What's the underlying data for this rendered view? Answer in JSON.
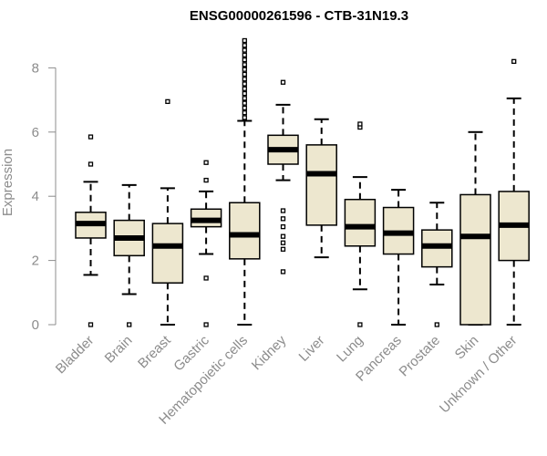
{
  "chart_data": {
    "type": "boxplot",
    "title": "ENSG00000261596 - CTB-31N19.3",
    "xlabel": "",
    "ylabel": "Expression",
    "ylim": [
      0,
      9
    ],
    "yticks": [
      0,
      2,
      4,
      6,
      8
    ],
    "colors": {
      "box_fill": "#ede7cf",
      "stroke": "#000000",
      "axis": "#8c8c8c"
    },
    "categories": [
      "Bladder",
      "Brain",
      "Breast",
      "Gastric",
      "Hematopoietic cells",
      "Kidney",
      "Liver",
      "Lung",
      "Pancreas",
      "Prostate",
      "Skin",
      "Unknown / Other"
    ],
    "boxes": [
      {
        "name": "Bladder",
        "whisker_low": 1.55,
        "q1": 2.7,
        "median": 3.15,
        "q3": 3.5,
        "whisker_high": 4.45,
        "outliers": [
          0,
          5,
          5.85
        ]
      },
      {
        "name": "Brain",
        "whisker_low": 0.95,
        "q1": 2.15,
        "median": 2.7,
        "q3": 3.25,
        "whisker_high": 4.35,
        "outliers": [
          0
        ]
      },
      {
        "name": "Breast",
        "whisker_low": 0,
        "q1": 1.3,
        "median": 2.45,
        "q3": 3.15,
        "whisker_high": 4.25,
        "outliers": [
          6.95
        ]
      },
      {
        "name": "Gastric",
        "whisker_low": 2.2,
        "q1": 3.05,
        "median": 3.25,
        "q3": 3.6,
        "whisker_high": 4.15,
        "outliers": [
          0,
          1.45,
          4.5,
          5.05
        ]
      },
      {
        "name": "Hematopoietic cells",
        "whisker_low": 0,
        "q1": 2.05,
        "median": 2.8,
        "q3": 3.8,
        "whisker_high": 6.35,
        "outliers": [
          6.45,
          6.6,
          6.75,
          6.9,
          7.05,
          7.2,
          7.35,
          7.5,
          7.65,
          7.8,
          7.95,
          8.1,
          8.25,
          8.4,
          8.55,
          8.7,
          8.85
        ]
      },
      {
        "name": "Kidney",
        "whisker_low": 4.5,
        "q1": 5.0,
        "median": 5.45,
        "q3": 5.9,
        "whisker_high": 6.85,
        "outliers": [
          1.65,
          2.35,
          2.55,
          2.75,
          3.05,
          3.3,
          3.55,
          7.55
        ]
      },
      {
        "name": "Liver",
        "whisker_low": 2.1,
        "q1": 3.1,
        "median": 4.7,
        "q3": 5.6,
        "whisker_high": 6.4,
        "outliers": []
      },
      {
        "name": "Lung",
        "whisker_low": 1.1,
        "q1": 2.45,
        "median": 3.05,
        "q3": 3.9,
        "whisker_high": 4.6,
        "outliers": [
          0,
          6.15,
          6.25
        ]
      },
      {
        "name": "Pancreas",
        "whisker_low": 0,
        "q1": 2.2,
        "median": 2.85,
        "q3": 3.65,
        "whisker_high": 4.2,
        "outliers": []
      },
      {
        "name": "Prostate",
        "whisker_low": 1.25,
        "q1": 1.8,
        "median": 2.45,
        "q3": 2.95,
        "whisker_high": 3.8,
        "outliers": [
          0
        ]
      },
      {
        "name": "Skin",
        "whisker_low": 0,
        "q1": 0,
        "median": 2.75,
        "q3": 4.05,
        "whisker_high": 6.0,
        "outliers": []
      },
      {
        "name": "Unknown / Other",
        "whisker_low": 0,
        "q1": 2.0,
        "median": 3.1,
        "q3": 4.15,
        "whisker_high": 7.05,
        "outliers": [
          8.2
        ]
      }
    ]
  }
}
